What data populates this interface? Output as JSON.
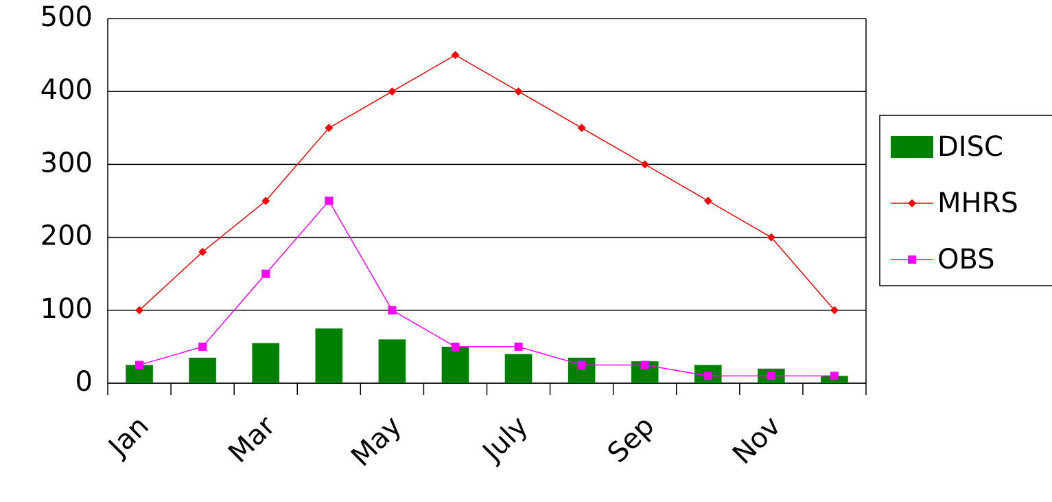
{
  "chart_data": {
    "type": "bar-line",
    "categories": [
      "Jan",
      null,
      "Mar",
      null,
      "May",
      null,
      "July",
      null,
      "Sep",
      null,
      "Nov",
      null
    ],
    "series": [
      {
        "name": "DISC",
        "type": "bar",
        "color": "#008000",
        "values": [
          25,
          35,
          55,
          75,
          60,
          50,
          40,
          35,
          30,
          25,
          20,
          10
        ]
      },
      {
        "name": "MHRS",
        "type": "line",
        "marker": "diamond",
        "color": "#ff0000",
        "values": [
          100,
          180,
          250,
          350,
          400,
          450,
          400,
          350,
          300,
          250,
          200,
          100
        ]
      },
      {
        "name": "OBS",
        "type": "line",
        "marker": "square",
        "color": "#ff00ff",
        "values": [
          25,
          50,
          150,
          250,
          100,
          50,
          50,
          25,
          25,
          10,
          10,
          10
        ]
      }
    ],
    "ylim": [
      0,
      500
    ],
    "yticks": [
      0,
      100,
      200,
      300,
      400,
      500
    ],
    "grid": true,
    "legend": "right"
  }
}
